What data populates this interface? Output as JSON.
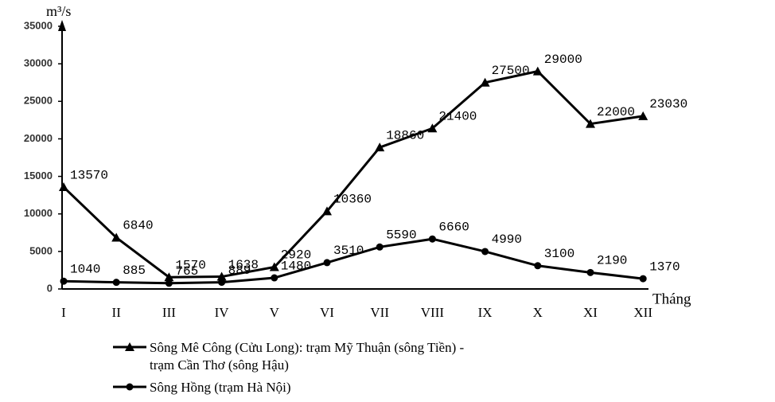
{
  "chart_data": {
    "type": "line",
    "y_label": "m³/s",
    "x_label": "Tháng",
    "categories": [
      "I",
      "II",
      "III",
      "IV",
      "V",
      "VI",
      "VII",
      "VIII",
      "IX",
      "X",
      "XI",
      "XII"
    ],
    "series": [
      {
        "name": "Sông Mê Công (Cửu Long): trạm Mỹ Thuận (sông Tiền) - trạm Cần Thơ (sông Hậu)",
        "color": "#000000",
        "marker": "triangle",
        "values": [
          13570,
          6840,
          1570,
          1638,
          2920,
          10360,
          18860,
          21400,
          27500,
          29000,
          22000,
          23030
        ]
      },
      {
        "name": "Sông Hồng (trạm Hà Nội)",
        "color": "#000000",
        "marker": "circle",
        "values": [
          1040,
          885,
          765,
          889,
          1480,
          3510,
          5590,
          6660,
          4990,
          3100,
          2190,
          1370
        ]
      }
    ],
    "ylim": [
      0,
      35000
    ],
    "yticks": [
      0,
      5000,
      10000,
      15000,
      20000,
      25000,
      30000,
      35000
    ]
  }
}
